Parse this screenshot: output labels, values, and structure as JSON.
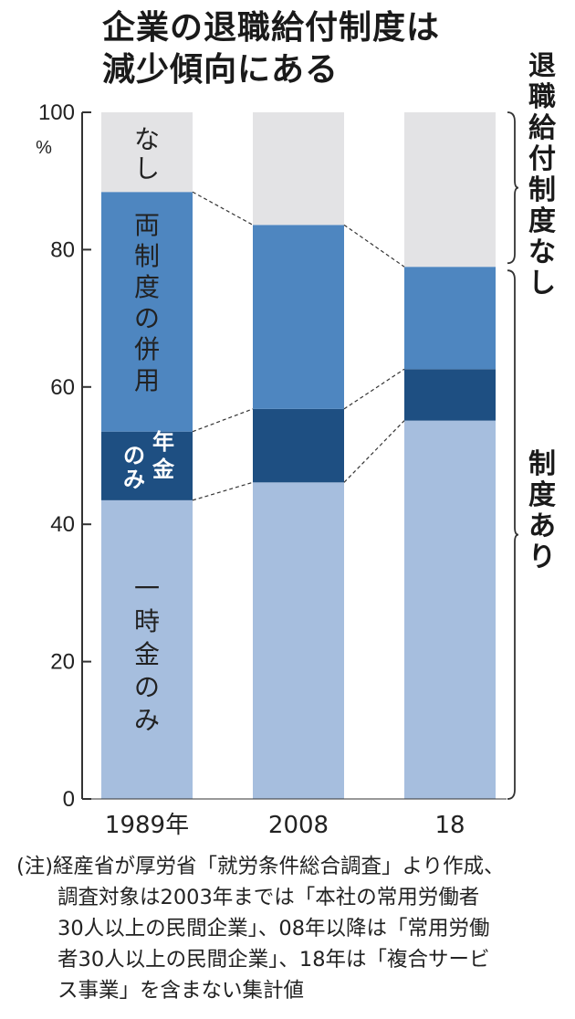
{
  "title_lines": [
    "企業の退職給付制度は",
    "減少傾向にある"
  ],
  "colors": {
    "none": "#e3e3e5",
    "both": "#4e86c0",
    "pension_only": "#1e4f82",
    "lump_sum_only": "#a6bede",
    "axis": "#333333",
    "guide": "#333333"
  },
  "chart_data": {
    "type": "bar",
    "stacked": true,
    "categories": [
      "1989年",
      "2008",
      "18"
    ],
    "series": [
      {
        "name": "一時金のみ",
        "values": [
          43.5,
          46.1,
          55.1
        ]
      },
      {
        "name": "年金のみ",
        "values": [
          10.0,
          10.7,
          7.5
        ]
      },
      {
        "name": "両制度の併用",
        "values": [
          34.9,
          26.8,
          14.9
        ]
      },
      {
        "name": "なし",
        "values": [
          11.6,
          16.4,
          22.5
        ]
      }
    ],
    "ylim": [
      0,
      100
    ],
    "yticks": [
      0,
      20,
      40,
      60,
      80,
      100
    ],
    "y_unit": "%",
    "bracket_labels": {
      "none": "退職給付制度なし",
      "has": "制度あり"
    }
  },
  "note_lines": [
    "(注)経産省が厚労省「就労条件総合調査」より作成、",
    "　　調査対象は2003年までは「本社の常用労働者",
    "　　30人以上の民間企業」、08年以降は「常用労働",
    "　　者30人以上の民間企業」、18年は「複合サービ",
    "　　ス事業」を含まない集計値"
  ]
}
